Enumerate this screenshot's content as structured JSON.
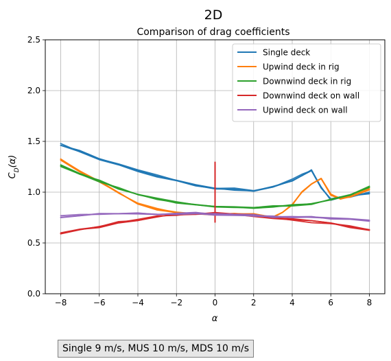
{
  "figure": {
    "suptitle": "2D",
    "caption": "Single 9 m/s, MUS 10 m/s, MDS 10 m/s"
  },
  "chart_data": {
    "type": "line",
    "title": "Comparison of drag coefficients",
    "xlabel": "α",
    "ylabel": "C_D(α)",
    "xlim": [
      -8.8,
      8.8
    ],
    "ylim": [
      0,
      2.5
    ],
    "xticks": [
      -8,
      -6,
      -4,
      -2,
      0,
      2,
      4,
      6,
      8
    ],
    "yticks": [
      0.0,
      0.5,
      1.0,
      1.5,
      2.0,
      2.5
    ],
    "xtick_labels": [
      "−8",
      "−6",
      "−4",
      "−2",
      "0",
      "2",
      "4",
      "6",
      "8"
    ],
    "ytick_labels": [
      "0.0",
      "0.5",
      "1.0",
      "1.5",
      "2.0",
      "2.5"
    ],
    "grid": true,
    "legend_position": "top-right",
    "series": [
      {
        "name": "Single deck",
        "color": "#1f77b4",
        "x": [
          -8,
          -7,
          -6,
          -5,
          -4,
          -3,
          -2,
          -1,
          0,
          1,
          2,
          3,
          4,
          4.5,
          5,
          5.5,
          6,
          6.5,
          7,
          8
        ],
        "y": [
          1.47,
          1.4,
          1.33,
          1.27,
          1.21,
          1.16,
          1.11,
          1.07,
          1.04,
          1.03,
          1.02,
          1.05,
          1.12,
          1.17,
          1.21,
          1.05,
          0.93,
          0.95,
          0.96,
          0.99
        ],
        "markers": false
      },
      {
        "name": "Upwind deck in rig",
        "color": "#ff7f0e",
        "x": [
          -8,
          -7,
          -6,
          -5,
          -4,
          -3,
          -2,
          -1,
          0,
          1,
          2,
          3,
          3.5,
          4,
          4.5,
          5,
          5.5,
          6,
          6.5,
          7,
          8
        ],
        "y": [
          1.32,
          1.2,
          1.1,
          0.99,
          0.89,
          0.83,
          0.8,
          0.79,
          0.78,
          0.78,
          0.78,
          0.76,
          0.8,
          0.88,
          1.0,
          1.08,
          1.13,
          0.98,
          0.94,
          0.96,
          1.03
        ],
        "markers": false
      },
      {
        "name": "Downwind deck in rig",
        "color": "#2ca02c",
        "x": [
          -8,
          -7,
          -6,
          -5,
          -4,
          -3,
          -2,
          -1,
          0,
          1,
          2,
          3,
          4,
          5,
          6,
          7,
          8
        ],
        "y": [
          1.26,
          1.18,
          1.11,
          1.04,
          0.98,
          0.93,
          0.9,
          0.88,
          0.86,
          0.85,
          0.85,
          0.86,
          0.87,
          0.89,
          0.93,
          0.98,
          1.05
        ],
        "markers": false
      },
      {
        "name": "Downwind deck on wall",
        "color": "#d62728",
        "x": [
          -8,
          -7,
          -6,
          -5,
          -4,
          -3,
          -2,
          -1,
          0,
          1,
          2,
          3,
          4,
          5,
          6,
          7,
          8
        ],
        "y": [
          0.59,
          0.63,
          0.66,
          0.7,
          0.73,
          0.76,
          0.78,
          0.79,
          0.79,
          0.78,
          0.77,
          0.75,
          0.73,
          0.71,
          0.69,
          0.66,
          0.63
        ],
        "spike": {
          "x": 0,
          "ymin": 0.7,
          "ymax": 1.3
        },
        "markers": false
      },
      {
        "name": "Upwind deck on wall",
        "color": "#9467bd",
        "x": [
          -8,
          -7,
          -6,
          -5,
          -4,
          -3,
          -2,
          -1,
          0,
          1,
          2,
          3,
          4,
          5,
          6,
          7,
          8
        ],
        "y": [
          0.76,
          0.77,
          0.78,
          0.78,
          0.79,
          0.79,
          0.79,
          0.79,
          0.78,
          0.78,
          0.77,
          0.76,
          0.75,
          0.75,
          0.74,
          0.73,
          0.72
        ],
        "markers": false
      }
    ]
  }
}
